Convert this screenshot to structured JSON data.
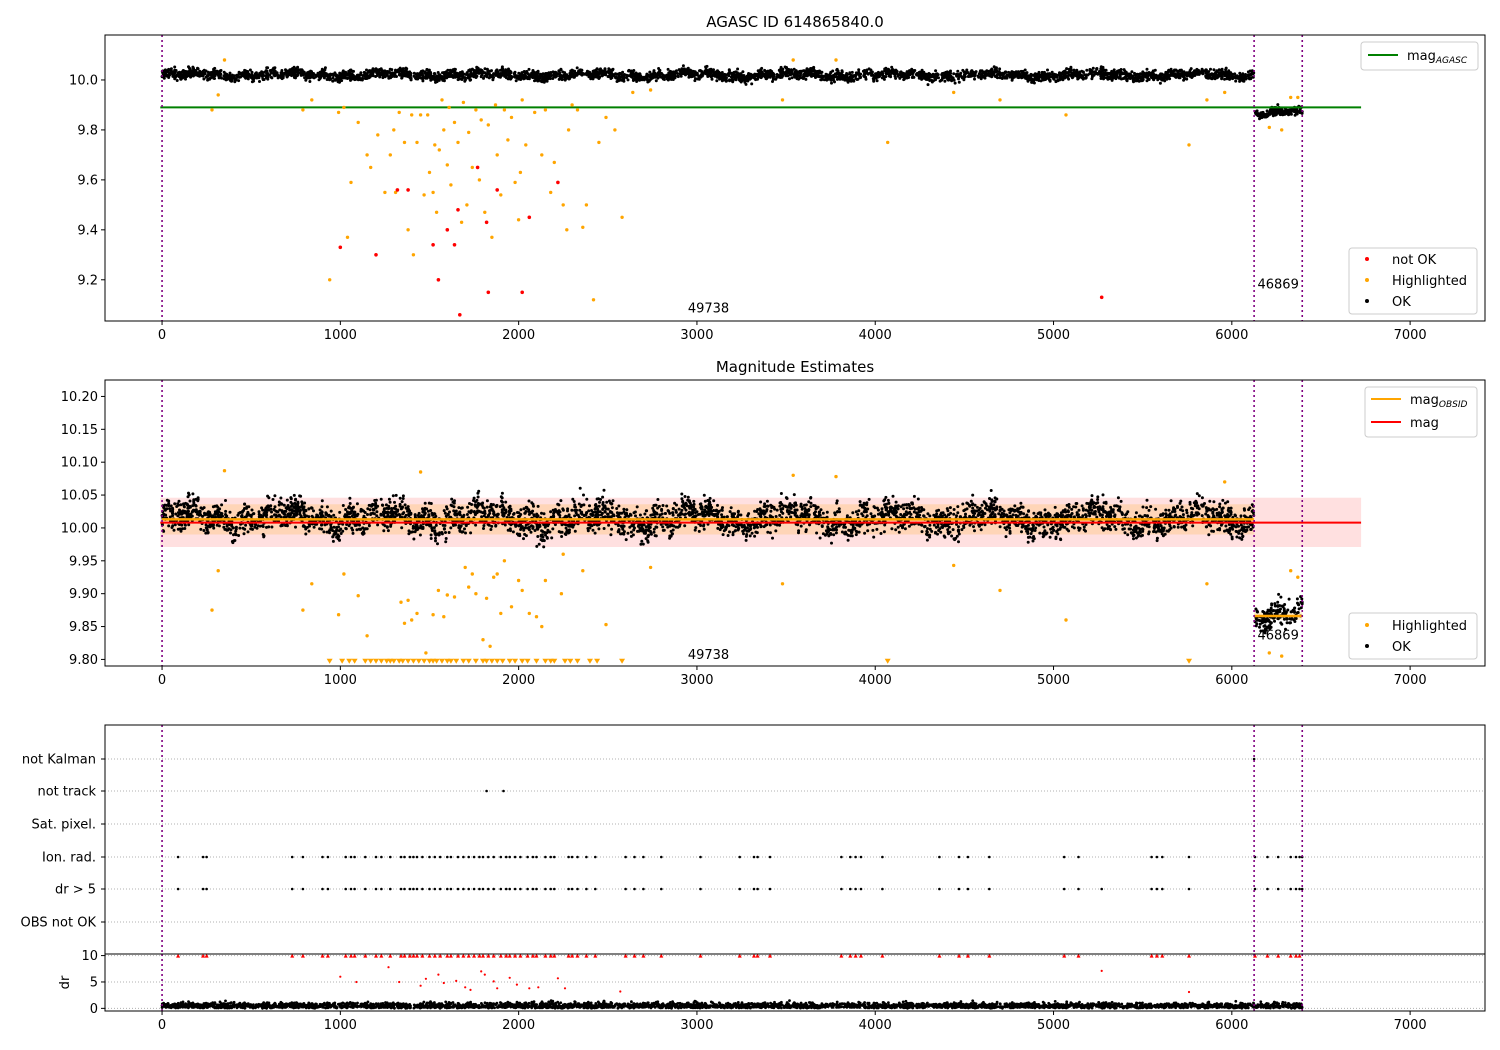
{
  "chart_data": [
    {
      "type": "scatter",
      "title": "AGASC ID 614865840.0",
      "xlim": [
        -320,
        7420
      ],
      "ylim": [
        9.035,
        10.18
      ],
      "xticks": [
        0,
        1000,
        2000,
        3000,
        4000,
        5000,
        6000,
        7000
      ],
      "yticks": [
        9.2,
        9.4,
        9.6,
        9.8,
        10.0
      ],
      "ytick_labels": [
        "9.2",
        "9.4",
        "9.6",
        "9.8",
        "10.0"
      ],
      "vlines": [
        0,
        6125,
        6395
      ],
      "obsid_labels": [
        {
          "text": "49738",
          "x": 3065,
          "y": 9.07
        },
        {
          "text": "46869",
          "x": 6260,
          "y": 9.165
        }
      ],
      "hline": {
        "name": "mag_AGASC",
        "y": 9.89,
        "xmin": -10,
        "xmax": 6725,
        "color": "#008000"
      },
      "legend_top": [
        {
          "label": "mag",
          "sub": "AGASC",
          "color": "#008000"
        }
      ],
      "legend_bottom": [
        {
          "label": "not OK",
          "color": "#ff0000"
        },
        {
          "label": "Highlighted",
          "color": "#ffa500"
        },
        {
          "label": "OK",
          "color": "#000000"
        }
      ],
      "ok_band": [
        {
          "x0": 0,
          "x1": 6125,
          "center": 10.02,
          "amp": 0.03
        },
        {
          "x0": 6130,
          "x1": 6395,
          "center": 9.87,
          "amp": 0.025
        }
      ],
      "highlighted_points": [
        [
          280,
          9.88
        ],
        [
          315,
          9.94
        ],
        [
          350,
          10.08
        ],
        [
          790,
          9.88
        ],
        [
          840,
          9.92
        ],
        [
          940,
          9.2
        ],
        [
          990,
          9.87
        ],
        [
          1020,
          9.89
        ],
        [
          1040,
          9.37
        ],
        [
          1060,
          9.59
        ],
        [
          1100,
          9.83
        ],
        [
          1150,
          9.7
        ],
        [
          1170,
          9.65
        ],
        [
          1210,
          9.78
        ],
        [
          1250,
          9.55
        ],
        [
          1280,
          9.7
        ],
        [
          1300,
          9.8
        ],
        [
          1310,
          9.55
        ],
        [
          1330,
          9.87
        ],
        [
          1360,
          9.75
        ],
        [
          1380,
          9.4
        ],
        [
          1400,
          9.86
        ],
        [
          1410,
          9.3
        ],
        [
          1430,
          9.75
        ],
        [
          1450,
          9.86
        ],
        [
          1470,
          9.54
        ],
        [
          1490,
          9.86
        ],
        [
          1500,
          9.63
        ],
        [
          1520,
          9.55
        ],
        [
          1530,
          9.74
        ],
        [
          1540,
          9.47
        ],
        [
          1555,
          9.72
        ],
        [
          1570,
          9.92
        ],
        [
          1580,
          9.8
        ],
        [
          1600,
          9.66
        ],
        [
          1610,
          9.89
        ],
        [
          1620,
          9.58
        ],
        [
          1640,
          9.83
        ],
        [
          1660,
          9.75
        ],
        [
          1680,
          9.43
        ],
        [
          1690,
          9.91
        ],
        [
          1710,
          9.5
        ],
        [
          1720,
          9.79
        ],
        [
          1740,
          9.65
        ],
        [
          1760,
          9.88
        ],
        [
          1780,
          9.6
        ],
        [
          1790,
          9.84
        ],
        [
          1810,
          9.47
        ],
        [
          1830,
          9.82
        ],
        [
          1850,
          9.37
        ],
        [
          1870,
          9.9
        ],
        [
          1880,
          9.7
        ],
        [
          1900,
          9.54
        ],
        [
          1920,
          9.88
        ],
        [
          1940,
          9.76
        ],
        [
          1960,
          9.85
        ],
        [
          1980,
          9.59
        ],
        [
          2000,
          9.44
        ],
        [
          2010,
          9.63
        ],
        [
          2020,
          9.92
        ],
        [
          2040,
          9.74
        ],
        [
          2090,
          9.87
        ],
        [
          2130,
          9.7
        ],
        [
          2150,
          9.88
        ],
        [
          2180,
          9.55
        ],
        [
          2200,
          9.67
        ],
        [
          2250,
          9.5
        ],
        [
          2270,
          9.4
        ],
        [
          2280,
          9.8
        ],
        [
          2300,
          9.9
        ],
        [
          2330,
          9.88
        ],
        [
          2360,
          9.41
        ],
        [
          2380,
          9.5
        ],
        [
          2420,
          9.12
        ],
        [
          2450,
          9.75
        ],
        [
          2490,
          9.85
        ],
        [
          2540,
          9.8
        ],
        [
          2580,
          9.45
        ],
        [
          2640,
          9.95
        ],
        [
          2740,
          9.96
        ],
        [
          3480,
          9.92
        ],
        [
          3540,
          10.08
        ],
        [
          3780,
          10.08
        ],
        [
          4070,
          9.75
        ],
        [
          4440,
          9.95
        ],
        [
          4700,
          9.92
        ],
        [
          5070,
          9.86
        ],
        [
          5760,
          9.74
        ],
        [
          5860,
          9.92
        ],
        [
          5960,
          9.95
        ],
        [
          6210,
          9.81
        ],
        [
          6280,
          9.8
        ],
        [
          6330,
          9.93
        ],
        [
          6370,
          9.93
        ]
      ],
      "notok_points": [
        [
          1000,
          9.33
        ],
        [
          1200,
          9.3
        ],
        [
          1320,
          9.56
        ],
        [
          1380,
          9.56
        ],
        [
          1520,
          9.34
        ],
        [
          1550,
          9.2
        ],
        [
          1600,
          9.4
        ],
        [
          1640,
          9.34
        ],
        [
          1660,
          9.48
        ],
        [
          1670,
          9.06
        ],
        [
          1770,
          9.65
        ],
        [
          1820,
          9.43
        ],
        [
          1830,
          9.15
        ],
        [
          1880,
          9.56
        ],
        [
          2020,
          9.15
        ],
        [
          2060,
          9.45
        ],
        [
          2220,
          9.59
        ],
        [
          5270,
          9.13
        ]
      ]
    },
    {
      "type": "scatter",
      "title": "Magnitude Estimates",
      "xlim": [
        -320,
        7420
      ],
      "ylim": [
        9.79,
        10.225
      ],
      "xticks": [
        0,
        1000,
        2000,
        3000,
        4000,
        5000,
        6000,
        7000
      ],
      "yticks": [
        9.8,
        9.85,
        9.9,
        9.95,
        10.0,
        10.05,
        10.1,
        10.15,
        10.2
      ],
      "ytick_labels": [
        "9.80",
        "9.85",
        "9.90",
        "9.95",
        "10.00",
        "10.05",
        "10.10",
        "10.15",
        "10.20"
      ],
      "vlines": [
        0,
        6125,
        6395
      ],
      "obsid_labels": [
        {
          "text": "49738",
          "x": 3065,
          "y": 9.801
        },
        {
          "text": "46869",
          "x": 6260,
          "y": 9.83
        }
      ],
      "mag_line": {
        "y": 10.008,
        "band": [
          9.971,
          10.046
        ],
        "xmin": -10,
        "xmax": 6725,
        "color": "#ff0000"
      },
      "mag_obsid": [
        {
          "x0": 0,
          "x1": 6125,
          "y": 10.013,
          "band": [
            9.99,
            10.036
          ]
        },
        {
          "x0": 6125,
          "x1": 6395,
          "y": 9.866,
          "band": [
            9.86,
            9.872
          ]
        }
      ],
      "legend_top": [
        {
          "label": "mag",
          "sub": "OBSID",
          "color": "#ffa500"
        },
        {
          "label": "mag",
          "sub": "",
          "color": "#ff0000"
        }
      ],
      "legend_bottom": [
        {
          "label": "Highlighted",
          "color": "#ffa500"
        },
        {
          "label": "OK",
          "color": "#000000"
        }
      ],
      "ok_band": [
        {
          "x0": 0,
          "x1": 6125,
          "center": 10.015,
          "amp": 0.035
        },
        {
          "x0": 6130,
          "x1": 6395,
          "center": 9.865,
          "amp": 0.03
        }
      ],
      "highlighted_points": [
        [
          280,
          9.875
        ],
        [
          315,
          9.935
        ],
        [
          350,
          10.087
        ],
        [
          790,
          9.875
        ],
        [
          840,
          9.915
        ],
        [
          990,
          9.868
        ],
        [
          1020,
          9.93
        ],
        [
          1100,
          9.897
        ],
        [
          1150,
          9.836
        ],
        [
          1340,
          9.887
        ],
        [
          1360,
          9.855
        ],
        [
          1380,
          9.89
        ],
        [
          1400,
          9.86
        ],
        [
          1430,
          9.87
        ],
        [
          1450,
          10.085
        ],
        [
          1480,
          9.81
        ],
        [
          1520,
          9.868
        ],
        [
          1550,
          9.905
        ],
        [
          1580,
          9.865
        ],
        [
          1600,
          9.898
        ],
        [
          1640,
          9.895
        ],
        [
          1700,
          9.94
        ],
        [
          1720,
          9.91
        ],
        [
          1740,
          9.93
        ],
        [
          1760,
          9.9
        ],
        [
          1800,
          9.83
        ],
        [
          1820,
          9.893
        ],
        [
          1840,
          9.82
        ],
        [
          1860,
          9.925
        ],
        [
          1880,
          9.93
        ],
        [
          1900,
          9.87
        ],
        [
          1920,
          9.95
        ],
        [
          1960,
          9.88
        ],
        [
          2000,
          9.92
        ],
        [
          2020,
          9.905
        ],
        [
          2060,
          9.87
        ],
        [
          2100,
          9.865
        ],
        [
          2130,
          9.85
        ],
        [
          2150,
          9.92
        ],
        [
          2240,
          9.9
        ],
        [
          2250,
          9.96
        ],
        [
          2360,
          9.935
        ],
        [
          2490,
          9.853
        ],
        [
          2740,
          9.94
        ],
        [
          3480,
          9.915
        ],
        [
          3540,
          10.08
        ],
        [
          3780,
          10.078
        ],
        [
          4440,
          9.943
        ],
        [
          4700,
          9.905
        ],
        [
          5070,
          9.86
        ],
        [
          5860,
          9.915
        ],
        [
          5960,
          10.07
        ],
        [
          6210,
          9.81
        ],
        [
          6280,
          9.805
        ],
        [
          6330,
          9.935
        ],
        [
          6370,
          9.925
        ]
      ],
      "below_limit": [
        940,
        1010,
        1050,
        1080,
        1140,
        1170,
        1200,
        1230,
        1260,
        1280,
        1300,
        1330,
        1350,
        1380,
        1410,
        1440,
        1470,
        1500,
        1520,
        1540,
        1570,
        1600,
        1620,
        1650,
        1690,
        1720,
        1760,
        1800,
        1820,
        1850,
        1880,
        1910,
        1950,
        1980,
        2020,
        2050,
        2100,
        2150,
        2180,
        2200,
        2260,
        2290,
        2330,
        2400,
        2440,
        2580,
        4070,
        5760
      ]
    },
    {
      "type": "scatter",
      "title": "",
      "xlim": [
        -320,
        7420
      ],
      "xticks": [
        0,
        1000,
        2000,
        3000,
        4000,
        5000,
        6000,
        7000
      ],
      "categories": [
        "not Kalman",
        "not track",
        "Sat. pixel.",
        "Ion. rad.",
        "dr > 5",
        "OBS not OK"
      ],
      "vlines": [
        0,
        6125,
        6395
      ],
      "flag_points": {
        "not Kalman": [
          6125
        ],
        "not track": [
          1820,
          1915
        ],
        "Ion. rad.": [
          90,
          230,
          250,
          730,
          790,
          900,
          930,
          1030,
          1060,
          1080,
          1140,
          1200,
          1230,
          1280,
          1340,
          1360,
          1390,
          1410,
          1430,
          1460,
          1500,
          1530,
          1560,
          1600,
          1620,
          1660,
          1690,
          1720,
          1750,
          1780,
          1800,
          1830,
          1860,
          1900,
          1930,
          1950,
          1980,
          2010,
          2050,
          2080,
          2100,
          2150,
          2180,
          2200,
          2280,
          2300,
          2330,
          2380,
          2430,
          2600,
          2650,
          2700,
          2800,
          3020,
          3240,
          3320,
          3340,
          3410,
          3810,
          3860,
          3890,
          3920,
          4040,
          4360,
          4470,
          4520,
          4640,
          5060,
          5140,
          5550,
          5580,
          5610,
          5760,
          6130,
          6200,
          6260,
          6330,
          6360,
          6380,
          6395
        ],
        "dr > 5": [
          90,
          230,
          250,
          730,
          790,
          900,
          930,
          1030,
          1060,
          1080,
          1140,
          1200,
          1230,
          1280,
          1340,
          1360,
          1390,
          1410,
          1430,
          1460,
          1500,
          1530,
          1560,
          1600,
          1620,
          1660,
          1690,
          1720,
          1750,
          1780,
          1800,
          1830,
          1860,
          1900,
          1930,
          1950,
          1980,
          2010,
          2050,
          2080,
          2100,
          2150,
          2180,
          2200,
          2280,
          2300,
          2330,
          2380,
          2430,
          2600,
          2650,
          2700,
          2800,
          3020,
          3240,
          3320,
          3340,
          3410,
          3810,
          3860,
          3890,
          3920,
          4040,
          4360,
          4470,
          4520,
          4640,
          5060,
          5140,
          5270,
          5550,
          5580,
          5610,
          5760,
          6130,
          6200,
          6260,
          6330,
          6360,
          6380,
          6395
        ]
      },
      "dr_panel": {
        "ylabel": "dr",
        "yticks": [
          0,
          5,
          10
        ],
        "ylim": [
          -0.5,
          10.3
        ],
        "clip_value": 10,
        "red_x": [
          90,
          230,
          250,
          730,
          790,
          900,
          930,
          1030,
          1060,
          1080,
          1140,
          1200,
          1230,
          1280,
          1340,
          1360,
          1390,
          1410,
          1430,
          1460,
          1500,
          1530,
          1560,
          1600,
          1620,
          1660,
          1690,
          1720,
          1750,
          1780,
          1800,
          1830,
          1860,
          1900,
          1930,
          1950,
          1980,
          2010,
          2050,
          2080,
          2100,
          2150,
          2180,
          2200,
          2280,
          2300,
          2330,
          2380,
          2430,
          2600,
          2650,
          2700,
          2800,
          3020,
          3240,
          3320,
          3340,
          3410,
          3810,
          3860,
          3890,
          3920,
          4040,
          4360,
          4470,
          4520,
          4640,
          5060,
          5140,
          5550,
          5580,
          5610,
          5760,
          6130,
          6200,
          6260,
          6330,
          6360,
          6380
        ],
        "red_mid": [
          [
            1000,
            6
          ],
          [
            1090,
            5
          ],
          [
            1270,
            7.8
          ],
          [
            1330,
            5
          ],
          [
            1450,
            4.3
          ],
          [
            1480,
            5.6
          ],
          [
            1550,
            6.4
          ],
          [
            1580,
            4.8
          ],
          [
            1650,
            5.2
          ],
          [
            1700,
            4
          ],
          [
            1730,
            3.5
          ],
          [
            1790,
            7
          ],
          [
            1810,
            6.4
          ],
          [
            1860,
            5.1
          ],
          [
            1880,
            3.8
          ],
          [
            1950,
            5.8
          ],
          [
            1990,
            4.5
          ],
          [
            2060,
            3.8
          ],
          [
            2110,
            4
          ],
          [
            2220,
            5.7
          ],
          [
            2260,
            3.8
          ],
          [
            2570,
            3.2
          ],
          [
            5270,
            7.1
          ],
          [
            5760,
            3.1
          ]
        ]
      }
    }
  ]
}
